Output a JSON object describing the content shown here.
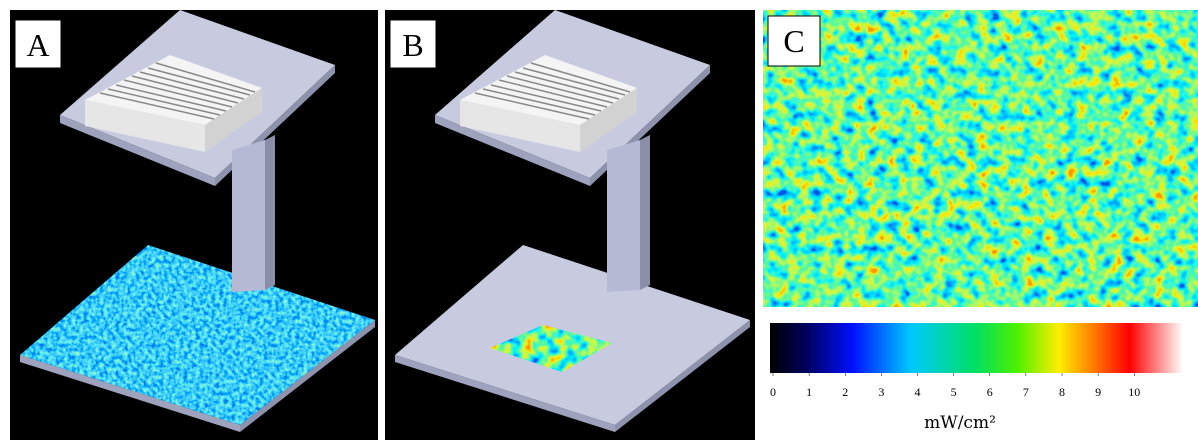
{
  "panels": [
    {
      "label": "A"
    },
    {
      "label": "B"
    },
    {
      "label": "C"
    }
  ],
  "colorbar": {
    "ticks": [
      0,
      1,
      2,
      3,
      4,
      5,
      6,
      7,
      8,
      9,
      10
    ],
    "range": [
      0,
      11.35
    ],
    "unit": "mW/cm²"
  }
}
